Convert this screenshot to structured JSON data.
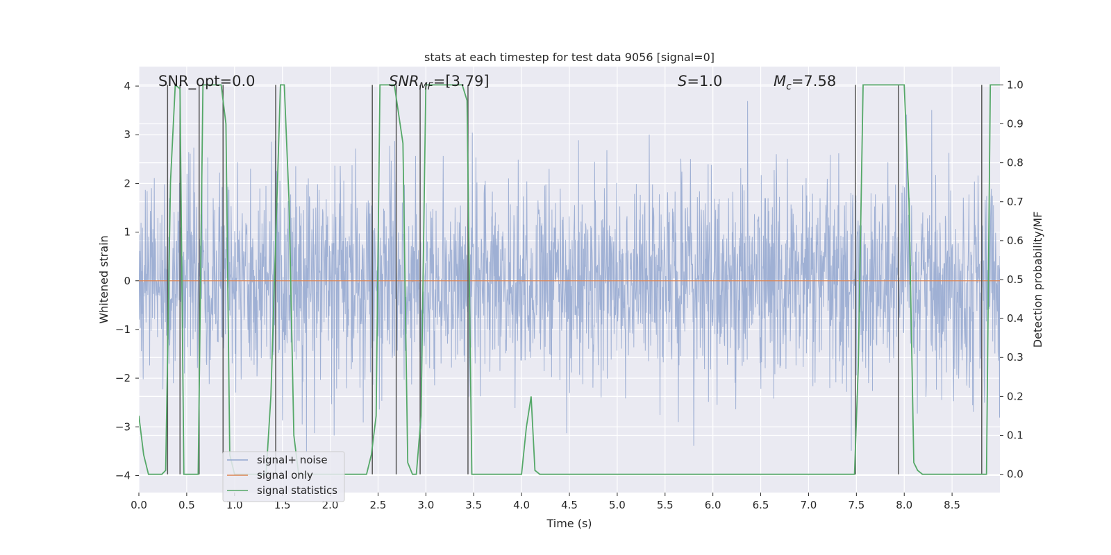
{
  "chart_data": {
    "type": "line",
    "title": "stats at each timestep for test data 9056 [signal=0]",
    "xlabel": "Time (s)",
    "ylabel": "Whitened strain",
    "ylabel_right": "Detection probability/MF",
    "xlim": [
      0.0,
      9.0
    ],
    "ylim": [
      -4.35,
      4.4
    ],
    "ylim_right": [
      -0.047,
      1.047
    ],
    "xticks": [
      "0.0",
      "0.5",
      "1.0",
      "1.5",
      "2.0",
      "2.5",
      "3.0",
      "3.5",
      "4.0",
      "4.5",
      "5.0",
      "5.5",
      "6.0",
      "6.5",
      "7.0",
      "7.5",
      "8.0",
      "8.5"
    ],
    "yticks": [
      "−4",
      "−3",
      "−2",
      "−1",
      "0",
      "1",
      "2",
      "3",
      "4"
    ],
    "yticks_right": [
      "0.0",
      "0.1",
      "0.2",
      "0.3",
      "0.4",
      "0.5",
      "0.6",
      "0.7",
      "0.8",
      "0.9",
      "1.0"
    ],
    "grid": true,
    "legend_position": "lower-left",
    "annotations": {
      "snr_opt": "SNR_opt=0.0",
      "snr_mf_main": "SNR",
      "snr_mf_sub": "MF",
      "snr_mf_val": "=[3.79]",
      "s_main": "S",
      "s_val": "=1.0",
      "mc_main": "M",
      "mc_sub": "c",
      "mc_val": "=7.58"
    },
    "series": [
      {
        "name": "signal+ noise",
        "color": "#92a6cf",
        "description_of_values": "whitened noise, roughly normal, amplitude mostly within ±2.5 with spikes to ±4",
        "y_range": [
          -3.9,
          3.9
        ]
      },
      {
        "name": "signal only",
        "color": "#dd8452",
        "x": [
          0.0,
          9.0
        ],
        "y": [
          0.0,
          0.0
        ]
      },
      {
        "name": "signal statistics",
        "color": "#55a868",
        "axis": "right",
        "x": [
          0.0,
          0.05,
          0.1,
          0.24,
          0.28,
          0.33,
          0.38,
          0.43,
          0.47,
          0.52,
          0.57,
          0.62,
          0.67,
          0.72,
          0.76,
          0.86,
          0.91,
          0.95,
          1.0,
          1.05,
          1.09,
          1.14,
          1.19,
          1.24,
          1.33,
          1.38,
          1.43,
          1.48,
          1.52,
          1.57,
          1.62,
          1.67,
          1.71,
          1.76,
          1.81,
          2.38,
          2.43,
          2.48,
          2.52,
          2.57,
          2.62,
          2.67,
          2.76,
          2.81,
          2.86,
          2.9,
          2.95,
          3.0,
          3.05,
          3.38,
          3.43,
          3.48,
          3.52,
          3.57,
          3.9,
          3.95,
          4.0,
          4.05,
          4.1,
          4.14,
          4.19,
          7.43,
          7.48,
          7.52,
          7.57,
          7.62,
          7.95,
          8.0,
          8.05,
          8.1,
          8.14,
          8.19,
          8.81,
          8.86,
          8.9,
          8.95,
          9.0
        ],
        "y": [
          0.15,
          0.05,
          0.0,
          0.0,
          0.01,
          0.75,
          1.0,
          0.99,
          0.0,
          0.0,
          0.0,
          0.0,
          1.0,
          1.0,
          1.0,
          1.0,
          0.9,
          0.05,
          0.0,
          0.0,
          0.0,
          0.0,
          0.0,
          0.0,
          0.0,
          0.2,
          0.6,
          1.0,
          1.0,
          0.7,
          0.1,
          0.0,
          0.0,
          0.0,
          0.0,
          0.0,
          0.05,
          0.15,
          1.0,
          1.0,
          1.0,
          1.0,
          0.85,
          0.03,
          0.0,
          0.0,
          0.15,
          1.0,
          1.0,
          1.0,
          0.96,
          0.0,
          0.0,
          0.0,
          0.0,
          0.0,
          0.0,
          0.12,
          0.2,
          0.01,
          0.0,
          0.0,
          0.0,
          0.28,
          1.0,
          1.0,
          1.0,
          1.0,
          0.7,
          0.03,
          0.01,
          0.0,
          0.0,
          0.0,
          1.0,
          1.0,
          1.0
        ]
      }
    ],
    "vertical_markers_x": [
      0.3,
      0.43,
      0.63,
      0.88,
      1.43,
      2.44,
      2.69,
      2.94,
      3.44,
      7.49,
      7.94,
      8.81
    ],
    "marker_color": "#555555"
  }
}
